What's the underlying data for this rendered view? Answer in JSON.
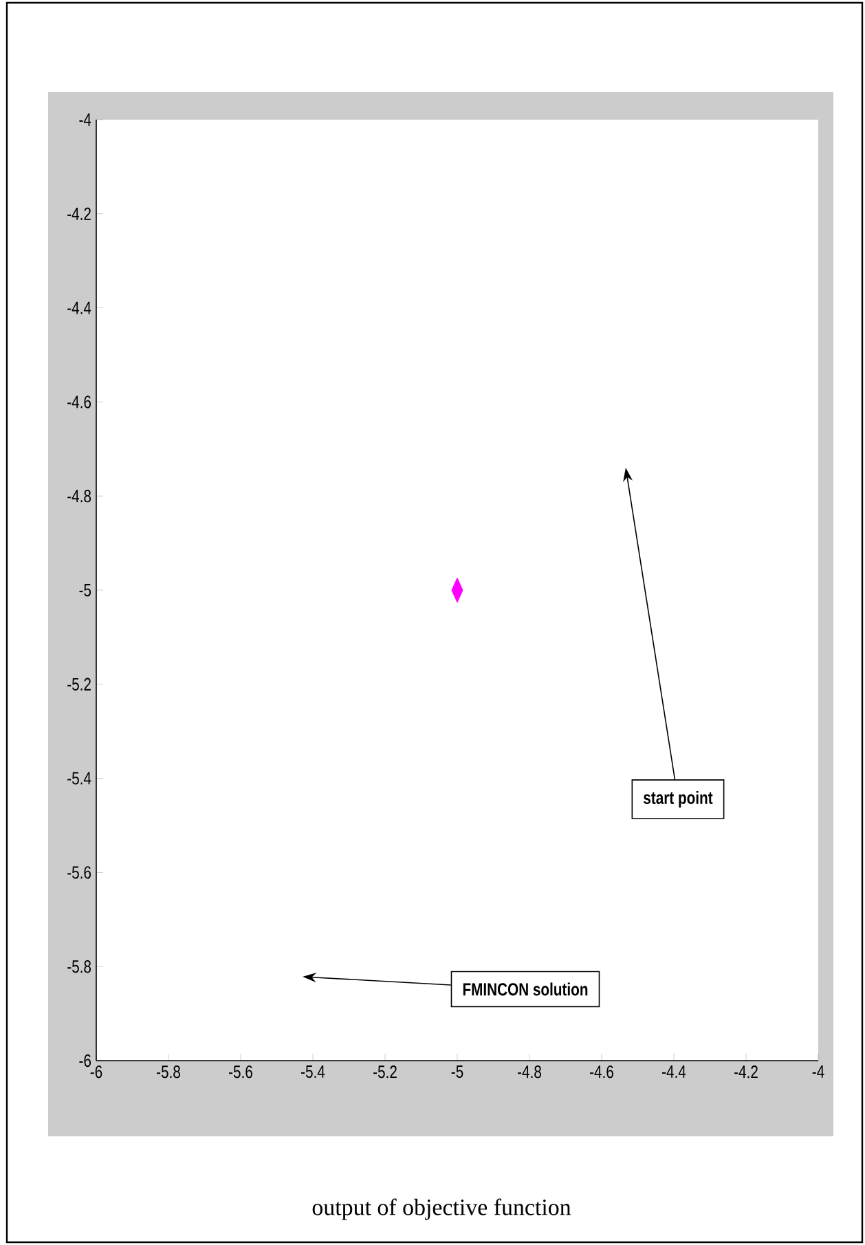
{
  "chart_data": {
    "type": "scatter",
    "x": [
      -5
    ],
    "values": [
      -5
    ],
    "color": "#ff00ff",
    "marker": "diamond",
    "xlim": [
      -6,
      -4
    ],
    "ylim": [
      -6,
      -4
    ],
    "xticks": [
      -6,
      -5.8,
      -5.6,
      -5.4,
      -5.2,
      -5,
      -4.8,
      -4.6,
      -4.4,
      -4.2,
      -4
    ],
    "yticks": [
      -6,
      -5.8,
      -5.6,
      -5.4,
      -5.2,
      -5,
      -4.8,
      -4.6,
      -4.4,
      -4.2,
      -4
    ],
    "grid": false,
    "annotations": [
      "start point",
      "FMINCON solution",
      "output of objective function"
    ]
  }
}
